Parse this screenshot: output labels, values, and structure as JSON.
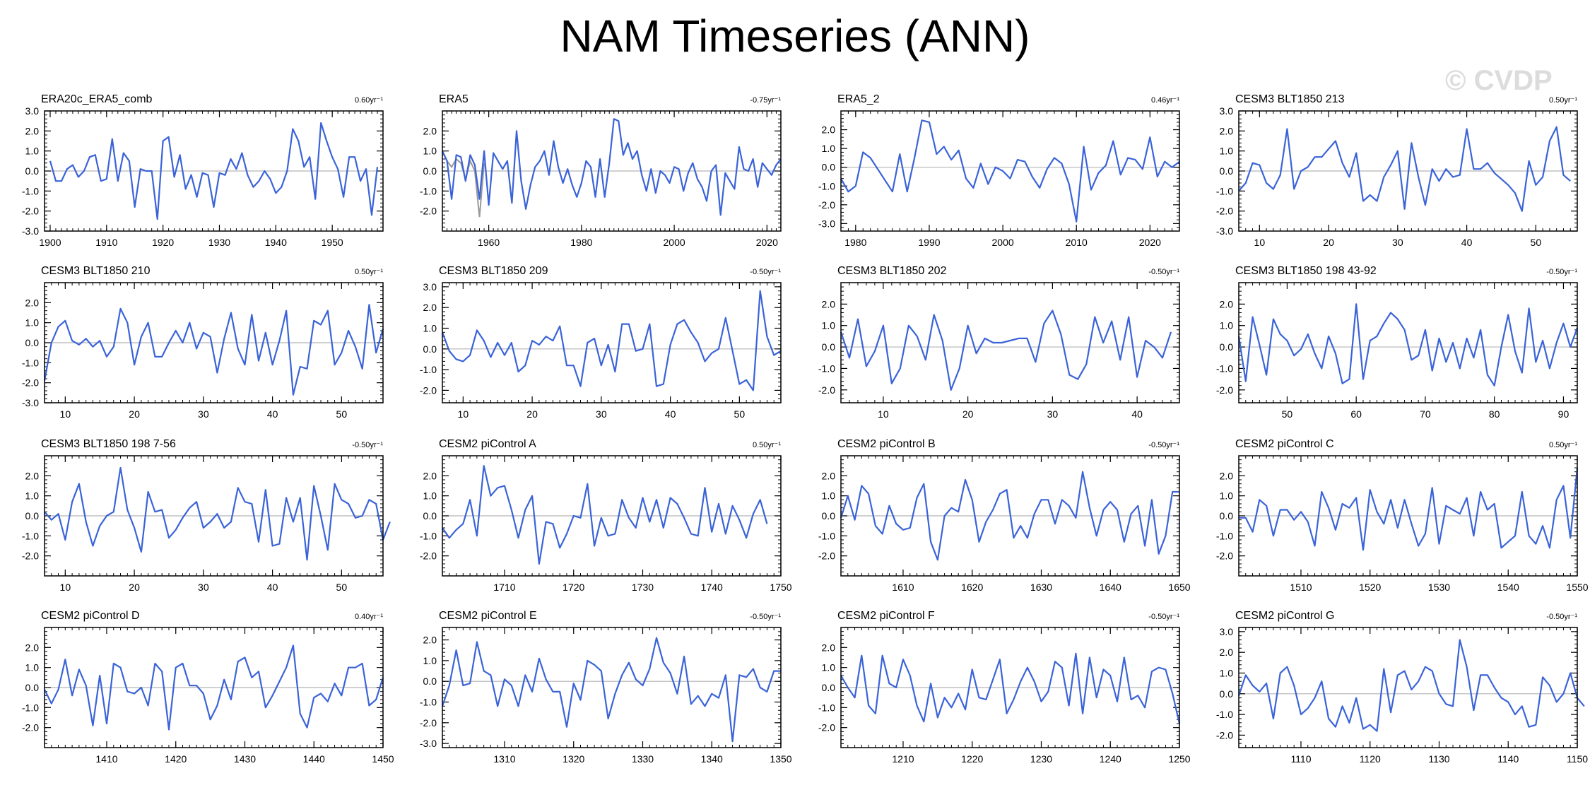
{
  "title": "NAM Timeseries (ANN)",
  "watermark": "© CVDP",
  "colors": {
    "series": "#3a63d8",
    "zero_line": "#b4b4b4",
    "frame": "#000000",
    "grey_series": "#999999"
  },
  "chart_data": [
    {
      "type": "line",
      "title": "ERA20c_ERA5_comb",
      "trend": "0.60yr⁻¹",
      "xlim": [
        1899,
        1959
      ],
      "xticks": [
        1900,
        1910,
        1920,
        1930,
        1940,
        1950
      ],
      "ylim": [
        -3.0,
        3.0
      ],
      "yticks": [
        3.0,
        2.0,
        1.0,
        0.0,
        -1.0,
        -2.0,
        -3.0
      ],
      "x_start": 1900,
      "values": [
        0.5,
        -0.5,
        -0.5,
        0.1,
        0.3,
        -0.3,
        0.0,
        0.7,
        0.8,
        -0.5,
        -0.4,
        1.6,
        -0.5,
        0.9,
        0.5,
        -1.8,
        0.1,
        0.0,
        0.0,
        -2.4,
        1.5,
        1.7,
        -0.3,
        0.8,
        -0.9,
        -0.2,
        -1.3,
        -0.1,
        -0.2,
        -1.8,
        -0.1,
        -0.2,
        0.6,
        0.1,
        0.9,
        -0.2,
        -0.8,
        -0.5,
        0.0,
        -0.4,
        -1.1,
        -0.8,
        0.0,
        2.1,
        1.5,
        0.2,
        0.7,
        -1.4,
        2.4,
        1.5,
        0.7,
        0.1,
        -1.3,
        0.7,
        0.7,
        -0.5,
        0.1,
        -2.2,
        0.2
      ]
    },
    {
      "type": "line",
      "title": "ERA5",
      "trend": "-0.75yr⁻¹",
      "xlim": [
        1950,
        2023
      ],
      "xticks": [
        1960,
        1980,
        2000,
        2020
      ],
      "ylim": [
        -3.0,
        3.0
      ],
      "yticks": [
        2.0,
        1.0,
        0.0,
        -1.0,
        -2.0
      ],
      "x_start": 1950,
      "values": [
        1.0,
        0.5,
        -1.4,
        0.8,
        0.7,
        -0.5,
        0.8,
        0.3,
        -1.4,
        1.0,
        -1.7,
        0.9,
        0.5,
        0.1,
        0.5,
        -1.6,
        2.0,
        -0.5,
        -1.9,
        -0.7,
        0.2,
        0.5,
        1.0,
        -0.2,
        1.5,
        0.2,
        -0.6,
        0.1,
        -0.7,
        -1.3,
        -0.6,
        0.5,
        0.2,
        -1.3,
        0.6,
        -1.3,
        0.4,
        2.6,
        2.5,
        0.8,
        1.4,
        0.6,
        1.0,
        -0.2,
        -1.0,
        0.1,
        -1.1,
        0.0,
        -0.2,
        -0.6,
        0.2,
        0.1,
        -1.0,
        -0.1,
        0.4,
        -0.4,
        -0.8,
        -1.5,
        0.0,
        0.3,
        -2.2,
        -0.1,
        -0.5,
        -0.9,
        1.2,
        0.1,
        0.0,
        0.6,
        -0.8,
        0.4,
        0.1,
        -0.2,
        0.3,
        0.6
      ],
      "secondary_values": [
        1.0,
        0.5,
        0.2,
        0.6,
        0.4,
        -0.4,
        0.5,
        0.0,
        -2.3,
        0.4
      ]
    },
    {
      "type": "line",
      "title": "ERA5_2",
      "trend": "0.46yr⁻¹",
      "xlim": [
        1978,
        2024
      ],
      "xticks": [
        1980,
        1990,
        2000,
        2010,
        2020
      ],
      "ylim": [
        -3.4,
        3.0
      ],
      "yticks": [
        2.0,
        1.0,
        0.0,
        -1.0,
        -2.0,
        -3.0
      ],
      "x_start": 1978,
      "values": [
        -0.6,
        -1.3,
        -1.0,
        0.8,
        0.5,
        -0.1,
        -0.7,
        -1.3,
        0.7,
        -1.3,
        0.5,
        2.5,
        2.4,
        0.7,
        1.1,
        0.4,
        0.9,
        -0.6,
        -1.1,
        0.2,
        -0.9,
        0.0,
        -0.2,
        -0.6,
        0.4,
        0.3,
        -0.5,
        -1.1,
        -0.1,
        0.5,
        0.2,
        -0.9,
        -2.9,
        1.1,
        -1.2,
        -0.3,
        0.1,
        1.4,
        -0.4,
        0.5,
        0.4,
        -0.1,
        1.6,
        -0.5,
        0.3,
        0.0,
        0.3
      ]
    },
    {
      "type": "line",
      "title": "CESM3 BLT1850 213",
      "trend": "0.50yr⁻¹",
      "xlim": [
        7,
        56
      ],
      "xticks": [
        10,
        20,
        30,
        40,
        50
      ],
      "ylim": [
        -3.0,
        3.0
      ],
      "yticks": [
        3.0,
        2.0,
        1.0,
        0.0,
        -1.0,
        -2.0,
        -3.0
      ],
      "x_start": 7,
      "values": [
        -1.0,
        -0.6,
        0.4,
        0.3,
        -0.6,
        -0.9,
        -0.2,
        2.1,
        -0.9,
        0.0,
        0.2,
        0.7,
        0.7,
        1.1,
        1.5,
        0.4,
        -0.3,
        0.9,
        -1.5,
        -1.2,
        -1.5,
        -0.3,
        0.3,
        1.0,
        -1.9,
        1.4,
        -0.3,
        -1.7,
        0.1,
        -0.5,
        0.1,
        -0.3,
        -0.2,
        2.1,
        0.1,
        0.1,
        0.4,
        -0.1,
        -0.4,
        -0.7,
        -1.1,
        -2.0,
        0.5,
        -0.7,
        -0.3,
        1.5,
        2.2,
        -0.2,
        -0.5
      ]
    },
    {
      "type": "line",
      "title": "CESM3 BLT1850 210",
      "trend": "0.50yr⁻¹",
      "xlim": [
        7,
        56
      ],
      "xticks": [
        10,
        20,
        30,
        40,
        50
      ],
      "ylim": [
        -3.0,
        3.0
      ],
      "yticks": [
        2.0,
        1.0,
        0.0,
        -1.0,
        -2.0,
        -3.0
      ],
      "x_start": 7,
      "values": [
        -1.9,
        0.0,
        0.8,
        1.1,
        0.1,
        -0.1,
        0.2,
        -0.2,
        0.1,
        -0.7,
        -0.2,
        1.7,
        1.0,
        -1.1,
        0.3,
        1.0,
        -0.7,
        -0.7,
        0.0,
        0.6,
        0.0,
        1.0,
        -0.3,
        0.5,
        0.3,
        -1.5,
        0.2,
        1.5,
        -0.3,
        -1.1,
        1.4,
        -0.9,
        0.5,
        -1.1,
        0.1,
        1.6,
        -2.6,
        -1.2,
        -1.3,
        1.1,
        0.9,
        1.6,
        -1.1,
        -0.5,
        0.6,
        -0.2,
        -1.3,
        1.9,
        -0.5,
        0.7
      ]
    },
    {
      "type": "line",
      "title": "CESM3 BLT1850 209",
      "trend": "-0.50yr⁻¹",
      "xlim": [
        7,
        56
      ],
      "xticks": [
        10,
        20,
        30,
        40,
        50
      ],
      "ylim": [
        -2.6,
        3.2
      ],
      "yticks": [
        3.0,
        2.0,
        1.0,
        0.0,
        -1.0,
        -2.0
      ],
      "x_start": 7,
      "values": [
        0.8,
        -0.1,
        -0.5,
        -0.6,
        -0.3,
        0.9,
        0.4,
        -0.4,
        0.3,
        -0.3,
        0.3,
        -1.1,
        -0.8,
        0.4,
        0.2,
        0.6,
        0.4,
        1.1,
        -0.8,
        -0.8,
        -1.8,
        0.3,
        0.5,
        -0.8,
        0.2,
        -1.1,
        1.2,
        1.2,
        -0.1,
        0.0,
        1.2,
        -1.8,
        -1.7,
        0.2,
        1.2,
        1.4,
        0.8,
        0.3,
        -0.6,
        -0.2,
        0.0,
        1.5,
        -0.1,
        -1.7,
        -1.5,
        -2.0,
        2.8,
        0.6,
        -0.3,
        -0.1
      ]
    },
    {
      "type": "line",
      "title": "CESM3 BLT1850 202",
      "trend": "-0.50yr⁻¹",
      "xlim": [
        5,
        45
      ],
      "xticks": [
        10,
        20,
        30,
        40
      ],
      "ylim": [
        -2.6,
        3.0
      ],
      "yticks": [
        2.0,
        1.0,
        0.0,
        -1.0,
        -2.0
      ],
      "x_start": 5,
      "values": [
        0.7,
        -0.5,
        1.3,
        -0.9,
        -0.2,
        1.0,
        -1.7,
        -1.0,
        1.0,
        0.5,
        -0.6,
        1.5,
        0.3,
        -2.0,
        -1.0,
        1.0,
        -0.3,
        0.4,
        0.2,
        0.2,
        0.3,
        0.4,
        0.4,
        -0.7,
        1.1,
        1.7,
        0.6,
        -1.3,
        -1.5,
        -0.8,
        1.4,
        0.2,
        1.2,
        -0.6,
        1.4,
        -1.4,
        0.3,
        0.0,
        -0.5,
        0.7
      ]
    },
    {
      "type": "line",
      "title": "CESM3 BLT1850 198 43-92",
      "trend": "-0.50yr⁻¹",
      "xlim": [
        43,
        92
      ],
      "xticks": [
        50,
        60,
        70,
        80,
        90
      ],
      "ylim": [
        -2.6,
        3.0
      ],
      "yticks": [
        2.0,
        1.0,
        0.0,
        -1.0,
        -2.0
      ],
      "x_start": 43,
      "values": [
        0.5,
        -1.6,
        1.4,
        0.1,
        -1.3,
        1.3,
        0.6,
        0.3,
        -0.4,
        -0.1,
        0.6,
        -0.3,
        -1.0,
        0.5,
        -0.3,
        -1.7,
        -1.5,
        2.0,
        -1.5,
        0.3,
        0.5,
        1.1,
        1.6,
        1.3,
        0.8,
        -0.6,
        -0.4,
        0.8,
        -1.1,
        0.4,
        -0.7,
        0.2,
        -1.0,
        0.4,
        -0.5,
        0.8,
        -1.3,
        -1.8,
        0.0,
        1.5,
        -0.2,
        -1.2,
        1.8,
        -0.7,
        0.3,
        -1.0,
        0.2,
        1.1,
        0.0,
        0.9
      ]
    },
    {
      "type": "line",
      "title": "CESM3 BLT1850 198 7-56",
      "trend": "-0.50yr⁻¹",
      "xlim": [
        7,
        56
      ],
      "xticks": [
        10,
        20,
        30,
        40,
        50
      ],
      "ylim": [
        -3.0,
        3.0
      ],
      "yticks": [
        2.0,
        1.0,
        0.0,
        -1.0,
        -2.0
      ],
      "x_start": 7,
      "values": [
        0.2,
        -0.2,
        0.1,
        -1.2,
        0.7,
        1.6,
        -0.3,
        -1.5,
        -0.5,
        0.0,
        0.2,
        2.4,
        0.3,
        -0.6,
        -1.8,
        1.2,
        0.2,
        0.3,
        -1.1,
        -0.7,
        -0.1,
        0.4,
        0.7,
        -0.6,
        -0.3,
        0.1,
        -0.6,
        -0.3,
        1.4,
        0.7,
        0.6,
        -1.3,
        1.3,
        -1.5,
        -1.4,
        0.9,
        -0.3,
        0.9,
        -2.2,
        1.5,
        0.0,
        -1.7,
        1.6,
        0.8,
        0.6,
        -0.1,
        0.0,
        0.8,
        0.6,
        -1.2,
        -0.3
      ]
    },
    {
      "type": "line",
      "title": "CESM2 piControl A",
      "trend": "0.50yr⁻¹",
      "xlim": [
        1701,
        1750
      ],
      "xticks": [
        1710,
        1720,
        1730,
        1740,
        1750
      ],
      "ylim": [
        -3.0,
        3.0
      ],
      "yticks": [
        2.0,
        1.0,
        0.0,
        -1.0,
        -2.0
      ],
      "x_start": 1701,
      "values": [
        -0.6,
        -1.1,
        -0.7,
        -0.4,
        0.8,
        -1.0,
        2.5,
        1.0,
        1.4,
        1.5,
        0.3,
        -1.1,
        0.3,
        1.0,
        -2.4,
        -0.3,
        -0.4,
        -1.6,
        -0.9,
        0.0,
        -0.1,
        1.6,
        -1.5,
        -0.1,
        -1.0,
        -0.9,
        0.8,
        -0.1,
        -0.6,
        0.9,
        -0.3,
        0.8,
        -0.6,
        0.9,
        0.6,
        -0.1,
        -0.9,
        -1.0,
        1.4,
        -0.8,
        0.6,
        -0.9,
        0.5,
        -0.2,
        -1.1,
        0.1,
        0.8,
        -0.4
      ]
    },
    {
      "type": "line",
      "title": "CESM2 piControl B",
      "trend": "-0.50yr⁻¹",
      "xlim": [
        1601,
        1650
      ],
      "xticks": [
        1610,
        1620,
        1630,
        1640,
        1650
      ],
      "ylim": [
        -3.0,
        3.0
      ],
      "yticks": [
        2.0,
        1.0,
        0.0,
        -1.0,
        -2.0
      ],
      "x_start": 1601,
      "values": [
        -0.1,
        1.0,
        -0.2,
        1.5,
        1.1,
        -0.5,
        -0.9,
        0.5,
        -0.4,
        -0.7,
        -0.6,
        0.9,
        1.6,
        -1.3,
        -2.2,
        0.0,
        0.4,
        0.2,
        1.8,
        0.8,
        -1.3,
        -0.3,
        0.3,
        1.1,
        1.3,
        -1.1,
        -0.5,
        -1.1,
        0.1,
        0.8,
        0.8,
        -0.4,
        0.8,
        0.5,
        -0.1,
        2.2,
        0.4,
        -1.0,
        0.3,
        0.7,
        0.3,
        -1.3,
        0.1,
        0.5,
        -1.5,
        0.8,
        -1.9,
        -1.0,
        1.2,
        1.2
      ]
    },
    {
      "type": "line",
      "title": "CESM2 piControl C",
      "trend": "0.50yr⁻¹",
      "xlim": [
        1501,
        1550
      ],
      "xticks": [
        1510,
        1520,
        1530,
        1540,
        1550
      ],
      "ylim": [
        -3.0,
        3.0
      ],
      "yticks": [
        2.0,
        1.0,
        0.0,
        -1.0,
        -2.0
      ],
      "x_start": 1501,
      "values": [
        -0.1,
        -0.1,
        -0.8,
        0.8,
        0.5,
        -1.0,
        0.3,
        0.3,
        -0.2,
        0.2,
        -0.3,
        -1.5,
        1.2,
        0.4,
        -0.7,
        0.6,
        0.4,
        0.9,
        -1.7,
        1.3,
        0.2,
        -0.4,
        0.8,
        -0.6,
        0.8,
        -0.4,
        -1.5,
        -0.9,
        1.4,
        -1.4,
        0.5,
        0.3,
        0.1,
        0.9,
        -1.0,
        1.2,
        0.3,
        0.6,
        -1.6,
        -1.3,
        -1.0,
        1.2,
        -1.0,
        -1.4,
        -0.5,
        -1.6,
        0.8,
        1.5,
        -1.1,
        2.4
      ]
    },
    {
      "type": "line",
      "title": "CESM2 piControl D",
      "trend": "0.40yr⁻¹",
      "xlim": [
        1401,
        1450
      ],
      "xticks": [
        1410,
        1420,
        1430,
        1440,
        1450
      ],
      "ylim": [
        -3.0,
        3.0
      ],
      "yticks": [
        2.0,
        1.0,
        0.0,
        -1.0,
        -2.0
      ],
      "x_start": 1401,
      "values": [
        -0.1,
        -0.8,
        -0.1,
        1.4,
        -0.4,
        0.9,
        0.1,
        -1.9,
        0.6,
        -1.8,
        1.2,
        1.0,
        -0.2,
        -0.3,
        0.0,
        -0.9,
        1.2,
        0.8,
        -2.1,
        1.0,
        1.2,
        0.1,
        0.1,
        -0.3,
        -1.6,
        -0.9,
        0.4,
        -0.6,
        1.3,
        1.5,
        0.5,
        0.8,
        -1.0,
        -0.4,
        0.3,
        1.0,
        2.1,
        -1.3,
        -2.0,
        -0.5,
        -0.3,
        -0.7,
        0.2,
        -0.4,
        1.0,
        1.0,
        1.2,
        -0.9,
        -0.6,
        0.5
      ]
    },
    {
      "type": "line",
      "title": "CESM2 piControl E",
      "trend": "-0.50yr⁻¹",
      "xlim": [
        1301,
        1350
      ],
      "xticks": [
        1310,
        1320,
        1330,
        1340,
        1350
      ],
      "ylim": [
        -3.2,
        2.6
      ],
      "yticks": [
        2.0,
        1.0,
        0.0,
        -1.0,
        -2.0,
        -3.0
      ],
      "x_start": 1301,
      "values": [
        -1.2,
        -0.2,
        1.5,
        -0.2,
        -0.1,
        1.9,
        0.5,
        0.3,
        -1.2,
        0.1,
        -0.2,
        -1.2,
        0.3,
        -0.5,
        1.1,
        0.1,
        -0.5,
        -0.5,
        -2.2,
        -0.1,
        -0.9,
        1.0,
        0.8,
        0.5,
        -1.8,
        -0.6,
        0.3,
        0.9,
        0.1,
        -0.2,
        0.6,
        2.1,
        0.9,
        0.4,
        -0.6,
        1.2,
        -1.1,
        -0.7,
        -1.2,
        -0.6,
        -0.8,
        0.3,
        -2.9,
        0.3,
        0.2,
        0.6,
        -0.3,
        -0.5,
        0.5,
        0.5
      ]
    },
    {
      "type": "line",
      "title": "CESM2 piControl F",
      "trend": "-0.50yr⁻¹",
      "xlim": [
        1201,
        1250
      ],
      "xticks": [
        1210,
        1220,
        1230,
        1240,
        1250
      ],
      "ylim": [
        -3.0,
        3.0
      ],
      "yticks": [
        2.0,
        1.0,
        0.0,
        -1.0,
        -2.0
      ],
      "x_start": 1201,
      "values": [
        0.6,
        0.0,
        -0.5,
        1.6,
        -0.9,
        -1.3,
        1.6,
        0.2,
        0.0,
        1.4,
        0.6,
        -0.9,
        -1.7,
        0.2,
        -1.5,
        -0.5,
        -1.0,
        -0.3,
        -1.1,
        0.9,
        -0.5,
        -0.6,
        0.4,
        1.4,
        -1.3,
        -0.6,
        0.3,
        1.0,
        0.3,
        -0.7,
        -0.2,
        1.3,
        1.0,
        -0.9,
        1.7,
        -1.3,
        1.5,
        -0.5,
        0.9,
        0.6,
        -0.7,
        1.5,
        -0.6,
        -0.4,
        -1.0,
        0.8,
        1.0,
        0.9,
        -0.3,
        -1.8
      ]
    },
    {
      "type": "line",
      "title": "CESM2 piControl G",
      "trend": "-0.50yr⁻¹",
      "xlim": [
        1101,
        1150
      ],
      "xticks": [
        1110,
        1120,
        1130,
        1140,
        1150
      ],
      "ylim": [
        -2.6,
        3.2
      ],
      "yticks": [
        3.0,
        2.0,
        1.0,
        0.0,
        -1.0,
        -2.0
      ],
      "x_start": 1101,
      "values": [
        -0.1,
        0.9,
        0.4,
        0.1,
        0.5,
        -1.2,
        1.0,
        1.3,
        0.4,
        -1.0,
        -0.7,
        -0.2,
        0.6,
        -1.2,
        -1.6,
        -0.6,
        -1.4,
        -0.2,
        -1.7,
        -1.5,
        -1.8,
        1.2,
        -0.9,
        0.9,
        1.1,
        0.2,
        0.6,
        1.3,
        1.1,
        0.0,
        -0.5,
        -0.6,
        2.6,
        1.3,
        -0.8,
        0.9,
        0.9,
        0.3,
        -0.2,
        -0.4,
        -1.0,
        -0.6,
        -1.6,
        -1.5,
        0.8,
        0.4,
        -0.4,
        0.0,
        1.0,
        -0.2,
        -0.6
      ]
    }
  ]
}
